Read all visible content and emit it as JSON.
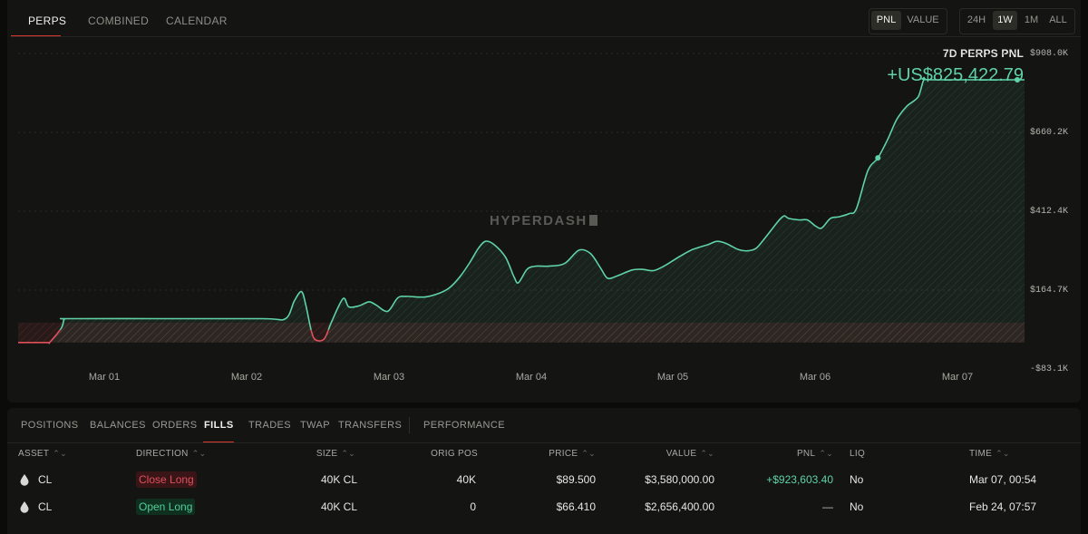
{
  "top_tabs": [
    "PERPS",
    "COMBINED",
    "CALENDAR"
  ],
  "active_top_tab": "PERPS",
  "metric_toggle": [
    "PNL",
    "VALUE"
  ],
  "active_metric": "PNL",
  "range_toggle": [
    "24H",
    "1W",
    "1M",
    "ALL"
  ],
  "active_range": "1W",
  "chart_header": {
    "title": "7D PERPS PNL",
    "value": "+US$825,422.79"
  },
  "watermark": "HYPERDASH",
  "colors": {
    "positive": "#5fd3a6",
    "negative": "#e0505a",
    "accent": "#d8382e"
  },
  "chart_data": {
    "type": "area",
    "title": "7D PERPS PNL",
    "x_ticks": [
      "Mar 01",
      "Mar 02",
      "Mar 03",
      "Mar 04",
      "Mar 05",
      "Mar 06",
      "Mar 07"
    ],
    "y_ticks": [
      "$908.0K",
      "$660.2K",
      "$412.4K",
      "$164.7K",
      "-$83.1K"
    ],
    "ylim": [
      -83100,
      908000
    ],
    "x_unit": "days since Feb 28 00:00",
    "points": [
      [
        0.0,
        0
      ],
      [
        0.2,
        0
      ],
      [
        0.22,
        1000
      ],
      [
        0.3,
        45000
      ],
      [
        0.32,
        72000
      ],
      [
        0.35,
        75000
      ],
      [
        1.0,
        75000
      ],
      [
        1.7,
        75000
      ],
      [
        1.86,
        75000
      ],
      [
        1.92,
        130000
      ],
      [
        1.97,
        160000
      ],
      [
        2.0,
        120000
      ],
      [
        2.04,
        35000
      ],
      [
        2.07,
        8000
      ],
      [
        2.13,
        12000
      ],
      [
        2.18,
        65000
      ],
      [
        2.26,
        138000
      ],
      [
        2.3,
        112000
      ],
      [
        2.37,
        115000
      ],
      [
        2.44,
        128000
      ],
      [
        2.49,
        118000
      ],
      [
        2.57,
        98000
      ],
      [
        2.64,
        140000
      ],
      [
        2.7,
        145000
      ],
      [
        2.83,
        143000
      ],
      [
        2.93,
        155000
      ],
      [
        3.0,
        172000
      ],
      [
        3.07,
        205000
      ],
      [
        3.14,
        250000
      ],
      [
        3.2,
        295000
      ],
      [
        3.25,
        318000
      ],
      [
        3.31,
        308000
      ],
      [
        3.39,
        268000
      ],
      [
        3.45,
        205000
      ],
      [
        3.48,
        188000
      ],
      [
        3.54,
        230000
      ],
      [
        3.6,
        240000
      ],
      [
        3.69,
        240000
      ],
      [
        3.8,
        248000
      ],
      [
        3.9,
        290000
      ],
      [
        3.98,
        280000
      ],
      [
        4.05,
        235000
      ],
      [
        4.1,
        202000
      ],
      [
        4.17,
        210000
      ],
      [
        4.27,
        228000
      ],
      [
        4.34,
        230000
      ],
      [
        4.42,
        226000
      ],
      [
        4.5,
        242000
      ],
      [
        4.6,
        270000
      ],
      [
        4.69,
        292000
      ],
      [
        4.8,
        308000
      ],
      [
        4.86,
        318000
      ],
      [
        4.92,
        312000
      ],
      [
        5.01,
        292000
      ],
      [
        5.07,
        288000
      ],
      [
        5.13,
        295000
      ],
      [
        5.18,
        320000
      ],
      [
        5.25,
        360000
      ],
      [
        5.3,
        388000
      ],
      [
        5.33,
        398000
      ],
      [
        5.36,
        390000
      ],
      [
        5.43,
        385000
      ],
      [
        5.49,
        385000
      ],
      [
        5.55,
        365000
      ],
      [
        5.59,
        360000
      ],
      [
        5.65,
        390000
      ],
      [
        5.71,
        395000
      ],
      [
        5.78,
        405000
      ],
      [
        5.83,
        420000
      ],
      [
        5.91,
        540000
      ],
      [
        5.98,
        580000
      ],
      [
        6.05,
        640000
      ],
      [
        6.11,
        700000
      ],
      [
        6.18,
        742000
      ],
      [
        6.26,
        772000
      ],
      [
        6.3,
        825000
      ],
      [
        6.35,
        825423
      ],
      [
        7.0,
        825423
      ]
    ],
    "markers_x": [
      5.98,
      6.95
    ]
  },
  "bottom_tabs": [
    "POSITIONS",
    "BALANCES",
    "ORDERS",
    "FILLS",
    "TRADES",
    "TWAP",
    "TRANSFERS",
    "PERFORMANCE"
  ],
  "active_bottom_tab": "FILLS",
  "table": {
    "headers": {
      "asset": "ASSET",
      "direction": "DIRECTION",
      "size": "SIZE",
      "orig_pos": "ORIG POS",
      "price": "PRICE",
      "value": "VALUE",
      "pnl": "PNL",
      "liq": "LIQ",
      "time": "TIME"
    },
    "rows": [
      {
        "asset": "CL",
        "direction": "Close Long",
        "size": "40K CL",
        "orig_pos": "40K",
        "price": "$89.500",
        "value": "$3,580,000.00",
        "pnl": "+$923,603.40",
        "liq": "No",
        "time": "Mar 07, 00:54"
      },
      {
        "asset": "CL",
        "direction": "Open Long",
        "size": "40K CL",
        "orig_pos": "0",
        "price": "$66.410",
        "value": "$2,656,400.00",
        "pnl": "—",
        "liq": "No",
        "time": "Feb 24, 07:57"
      }
    ]
  }
}
